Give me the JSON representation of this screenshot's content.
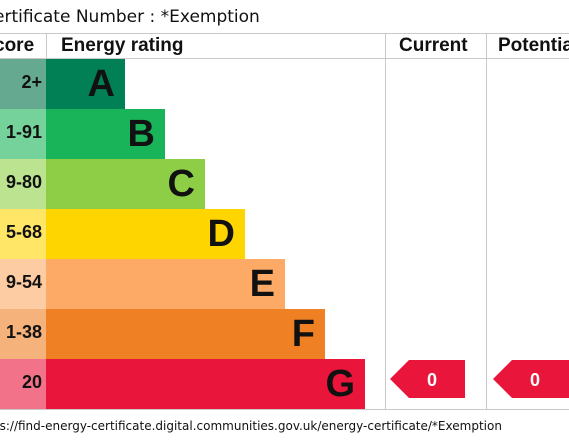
{
  "header": {
    "certificate_text": "ertificate Number : *Exemption"
  },
  "chart_data": {
    "type": "bar",
    "columns": {
      "score": "core",
      "rating": "Energy rating",
      "current": "Current",
      "potential": "Potentia"
    },
    "bands": [
      {
        "score": "2+",
        "letter": "A",
        "color": "#008054",
        "score_color": "#66a991"
      },
      {
        "score": "1-91",
        "letter": "B",
        "color": "#19b459",
        "score_color": "#75d29a"
      },
      {
        "score": "9-80",
        "letter": "C",
        "color": "#8dce46",
        "score_color": "#bbe390"
      },
      {
        "score": "5-68",
        "letter": "D",
        "color": "#ffd500",
        "score_color": "#ffe666"
      },
      {
        "score": "9-54",
        "letter": "E",
        "color": "#fcaa65",
        "score_color": "#fdcca3"
      },
      {
        "score": "1-38",
        "letter": "F",
        "color": "#ef8023",
        "score_color": "#f5b37b"
      },
      {
        "score": "20",
        "letter": "G",
        "color": "#e9153b",
        "score_color": "#f27389"
      }
    ],
    "current": {
      "value": 0,
      "band": "G",
      "color": "#e9153b"
    },
    "potential": {
      "value": 0,
      "band": "G",
      "color": "#e9153b"
    }
  },
  "footer": {
    "url": "ps://find-energy-certificate.digital.communities.gov.uk/energy-certificate/*Exemption"
  }
}
